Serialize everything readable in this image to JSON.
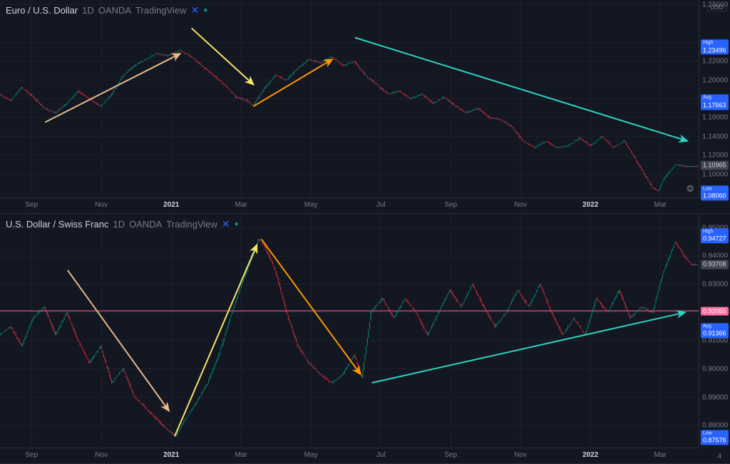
{
  "colors": {
    "bg": "#131722",
    "grid": "#1e222d",
    "border": "#2a2e39",
    "text": "#d1d4dc",
    "muted": "#787b86",
    "up_body": "#089981",
    "up_wick": "#089981",
    "down_body": "#f23645",
    "down_wick": "#f23645",
    "arrow_tan": "#e8b887",
    "arrow_yellow": "#f5e663",
    "arrow_orange": "#ff9800",
    "arrow_teal": "#2dd4bf",
    "hline_pink": "#ff6b9d",
    "tag_high": "#2962ff",
    "tag_avg": "#2962ff",
    "tag_low": "#2962ff",
    "tag_price_bg": "#434651",
    "tag_price_fg": "#d1d4dc"
  },
  "panels": [
    {
      "id": "eurusd",
      "header": {
        "symbol": "Euro / U.S. Dollar",
        "tf": "1D",
        "broker": "OANDA",
        "tv": "TradingView"
      },
      "currency": "USD",
      "y": {
        "min": 1.075,
        "max": 1.285,
        "ticks": [
          1.1,
          1.12,
          1.14,
          1.16,
          1.18,
          1.2,
          1.22,
          1.24,
          1.28
        ]
      },
      "labels": [
        {
          "kind": "high",
          "text": "1.23496",
          "value": 1.23496,
          "bg": "#2962ff",
          "fg": "#ffffff",
          "lbl": "High"
        },
        {
          "kind": "avg",
          "text": "1.17663",
          "value": 1.17663,
          "bg": "#2962ff",
          "fg": "#ffffff",
          "lbl": "Avg"
        },
        {
          "kind": "last",
          "text": "1.10965",
          "value": 1.10965,
          "bg": "#434651",
          "fg": "#d1d4dc"
        },
        {
          "kind": "low",
          "text": "1.08060",
          "value": 1.0806,
          "bg": "#2962ff",
          "fg": "#ffffff",
          "lbl": "Low"
        }
      ],
      "x": {
        "ticks": [
          {
            "t": 28,
            "label": "Sep"
          },
          {
            "t": 90,
            "label": "Nov"
          },
          {
            "t": 152,
            "label": "2021",
            "bold": true
          },
          {
            "t": 214,
            "label": "Mar"
          },
          {
            "t": 276,
            "label": "May"
          },
          {
            "t": 338,
            "label": "Jul"
          },
          {
            "t": 400,
            "label": "Sep"
          },
          {
            "t": 462,
            "label": "Nov"
          },
          {
            "t": 524,
            "label": "2022",
            "bold": true
          },
          {
            "t": 586,
            "label": "Mar"
          }
        ],
        "n": 620
      },
      "candles_seed": 11,
      "price_path": [
        [
          0,
          1.185
        ],
        [
          10,
          1.178
        ],
        [
          20,
          1.192
        ],
        [
          30,
          1.182
        ],
        [
          40,
          1.17
        ],
        [
          50,
          1.165
        ],
        [
          60,
          1.175
        ],
        [
          70,
          1.188
        ],
        [
          80,
          1.18
        ],
        [
          90,
          1.172
        ],
        [
          100,
          1.185
        ],
        [
          110,
          1.205
        ],
        [
          120,
          1.215
        ],
        [
          130,
          1.222
        ],
        [
          140,
          1.228
        ],
        [
          150,
          1.226
        ],
        [
          160,
          1.232
        ],
        [
          170,
          1.225
        ],
        [
          180,
          1.215
        ],
        [
          190,
          1.205
        ],
        [
          200,
          1.195
        ],
        [
          210,
          1.182
        ],
        [
          220,
          1.178
        ],
        [
          225,
          1.172
        ],
        [
          235,
          1.19
        ],
        [
          245,
          1.205
        ],
        [
          255,
          1.2
        ],
        [
          265,
          1.212
        ],
        [
          275,
          1.222
        ],
        [
          285,
          1.218
        ],
        [
          295,
          1.225
        ],
        [
          305,
          1.215
        ],
        [
          315,
          1.22
        ],
        [
          325,
          1.205
        ],
        [
          335,
          1.195
        ],
        [
          345,
          1.185
        ],
        [
          355,
          1.188
        ],
        [
          365,
          1.18
        ],
        [
          375,
          1.185
        ],
        [
          385,
          1.175
        ],
        [
          395,
          1.182
        ],
        [
          405,
          1.172
        ],
        [
          415,
          1.165
        ],
        [
          425,
          1.17
        ],
        [
          435,
          1.16
        ],
        [
          445,
          1.158
        ],
        [
          455,
          1.15
        ],
        [
          465,
          1.135
        ],
        [
          475,
          1.128
        ],
        [
          485,
          1.135
        ],
        [
          495,
          1.128
        ],
        [
          505,
          1.13
        ],
        [
          515,
          1.138
        ],
        [
          525,
          1.13
        ],
        [
          535,
          1.14
        ],
        [
          545,
          1.128
        ],
        [
          555,
          1.135
        ],
        [
          565,
          1.115
        ],
        [
          575,
          1.095
        ],
        [
          580,
          1.085
        ],
        [
          585,
          1.082
        ],
        [
          590,
          1.095
        ],
        [
          600,
          1.11
        ],
        [
          610,
          1.108
        ]
      ],
      "arrows": [
        {
          "color": "#e8b887",
          "pts": [
            [
              40,
              1.155
            ],
            [
              160,
              1.228
            ]
          ]
        },
        {
          "color": "#f5e663",
          "pts": [
            [
              170,
              1.255
            ],
            [
              225,
              1.195
            ]
          ]
        },
        {
          "color": "#ff9800",
          "pts": [
            [
              225,
              1.172
            ],
            [
              295,
              1.222
            ]
          ]
        },
        {
          "color": "#2dd4bf",
          "pts": [
            [
              315,
              1.245
            ],
            [
              610,
              1.135
            ]
          ]
        }
      ],
      "hlines": []
    },
    {
      "id": "usdchf",
      "header": {
        "symbol": "U.S. Dollar / Swiss Franc",
        "tf": "1D",
        "broker": "OANDA",
        "tv": "TradingView"
      },
      "currency": null,
      "y": {
        "min": 0.872,
        "max": 0.955,
        "ticks": [
          0.88,
          0.89,
          0.9,
          0.91,
          0.92,
          0.93,
          0.94,
          0.95
        ]
      },
      "labels": [
        {
          "kind": "high",
          "text": "0.94727",
          "value": 0.94727,
          "bg": "#2962ff",
          "fg": "#ffffff",
          "lbl": "High"
        },
        {
          "kind": "last",
          "text": "0.93708",
          "value": 0.93708,
          "bg": "#434651",
          "fg": "#d1d4dc"
        },
        {
          "kind": "pink",
          "text": "0.92055",
          "value": 0.92055,
          "bg": "#ff6b9d",
          "fg": "#ffffff"
        },
        {
          "kind": "avg",
          "text": "0.91366",
          "value": 0.91366,
          "bg": "#2962ff",
          "fg": "#ffffff",
          "lbl": "Avg"
        },
        {
          "kind": "low",
          "text": "0.87576",
          "value": 0.87576,
          "bg": "#2962ff",
          "fg": "#ffffff",
          "lbl": "Low"
        }
      ],
      "x": {
        "ticks": [
          {
            "t": 28,
            "label": "Sep"
          },
          {
            "t": 90,
            "label": "Nov"
          },
          {
            "t": 152,
            "label": "2021",
            "bold": true
          },
          {
            "t": 214,
            "label": "Mar"
          },
          {
            "t": 276,
            "label": "May"
          },
          {
            "t": 338,
            "label": "Jul"
          },
          {
            "t": 400,
            "label": "Sep"
          },
          {
            "t": 462,
            "label": "Nov"
          },
          {
            "t": 524,
            "label": "2022",
            "bold": true
          },
          {
            "t": 586,
            "label": "Mar"
          }
        ],
        "n": 620
      },
      "candles_seed": 42,
      "price_path": [
        [
          0,
          0.912
        ],
        [
          10,
          0.915
        ],
        [
          20,
          0.908
        ],
        [
          30,
          0.918
        ],
        [
          40,
          0.922
        ],
        [
          50,
          0.912
        ],
        [
          60,
          0.92
        ],
        [
          70,
          0.91
        ],
        [
          80,
          0.902
        ],
        [
          90,
          0.908
        ],
        [
          100,
          0.895
        ],
        [
          110,
          0.9
        ],
        [
          120,
          0.89
        ],
        [
          130,
          0.886
        ],
        [
          140,
          0.882
        ],
        [
          150,
          0.878
        ],
        [
          157,
          0.876
        ],
        [
          165,
          0.882
        ],
        [
          175,
          0.888
        ],
        [
          185,
          0.895
        ],
        [
          195,
          0.905
        ],
        [
          205,
          0.918
        ],
        [
          215,
          0.93
        ],
        [
          225,
          0.94
        ],
        [
          230,
          0.946
        ],
        [
          235,
          0.944
        ],
        [
          245,
          0.935
        ],
        [
          255,
          0.92
        ],
        [
          265,
          0.908
        ],
        [
          275,
          0.902
        ],
        [
          285,
          0.898
        ],
        [
          295,
          0.895
        ],
        [
          305,
          0.898
        ],
        [
          315,
          0.905
        ],
        [
          322,
          0.897
        ],
        [
          330,
          0.92
        ],
        [
          340,
          0.925
        ],
        [
          350,
          0.918
        ],
        [
          360,
          0.925
        ],
        [
          370,
          0.92
        ],
        [
          380,
          0.912
        ],
        [
          390,
          0.92
        ],
        [
          400,
          0.928
        ],
        [
          410,
          0.922
        ],
        [
          420,
          0.93
        ],
        [
          430,
          0.922
        ],
        [
          440,
          0.915
        ],
        [
          450,
          0.92
        ],
        [
          460,
          0.928
        ],
        [
          470,
          0.922
        ],
        [
          480,
          0.93
        ],
        [
          490,
          0.92
        ],
        [
          500,
          0.912
        ],
        [
          510,
          0.918
        ],
        [
          520,
          0.912
        ],
        [
          530,
          0.925
        ],
        [
          540,
          0.92
        ],
        [
          550,
          0.928
        ],
        [
          560,
          0.918
        ],
        [
          570,
          0.922
        ],
        [
          580,
          0.92
        ],
        [
          585,
          0.928
        ],
        [
          590,
          0.935
        ],
        [
          600,
          0.945
        ],
        [
          608,
          0.94
        ],
        [
          614,
          0.937
        ]
      ],
      "arrows": [
        {
          "color": "#e8b887",
          "pts": [
            [
              60,
              0.935
            ],
            [
              150,
              0.885
            ]
          ]
        },
        {
          "color": "#f5e663",
          "pts": [
            [
              155,
              0.876
            ],
            [
              228,
              0.944
            ]
          ]
        },
        {
          "color": "#ff9800",
          "pts": [
            [
              232,
              0.946
            ],
            [
              320,
              0.898
            ]
          ]
        },
        {
          "color": "#2dd4bf",
          "pts": [
            [
              330,
              0.895
            ],
            [
              608,
              0.92
            ]
          ]
        }
      ],
      "hlines": [
        {
          "value": 0.92055,
          "color": "#ff6b9d"
        }
      ],
      "end_label": "4"
    }
  ]
}
